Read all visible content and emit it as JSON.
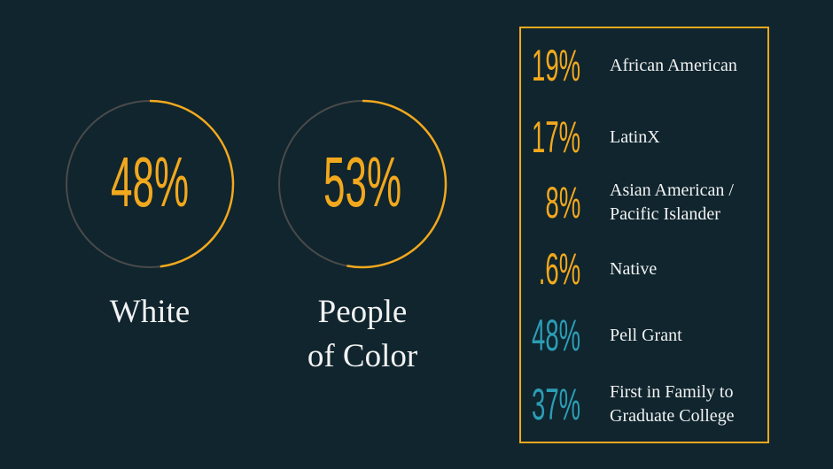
{
  "rings": [
    {
      "value": 48,
      "value_label": "48%",
      "label_lines": [
        "White"
      ]
    },
    {
      "value": 53,
      "value_label": "53%",
      "label_lines": [
        "People",
        "of Color"
      ]
    }
  ],
  "ring_color": "#f2a81d",
  "ring_track_color": "#4a4a4a",
  "list": [
    {
      "stat": "19%",
      "label_lines": [
        "African American"
      ],
      "color": "#f2a81d"
    },
    {
      "stat": "17%",
      "label_lines": [
        "LatinX"
      ],
      "color": "#f2a81d"
    },
    {
      "stat": "8%",
      "label_lines": [
        "Asian American /",
        "Pacific Islander"
      ],
      "color": "#f2a81d"
    },
    {
      "stat": ".6%",
      "label_lines": [
        "Native"
      ],
      "color": "#f2a81d"
    },
    {
      "stat": "48%",
      "label_lines": [
        "Pell Grant"
      ],
      "color": "#2b9db5"
    },
    {
      "stat": "37%",
      "label_lines": [
        "First in Family to",
        "Graduate College"
      ],
      "color": "#2b9db5"
    }
  ]
}
